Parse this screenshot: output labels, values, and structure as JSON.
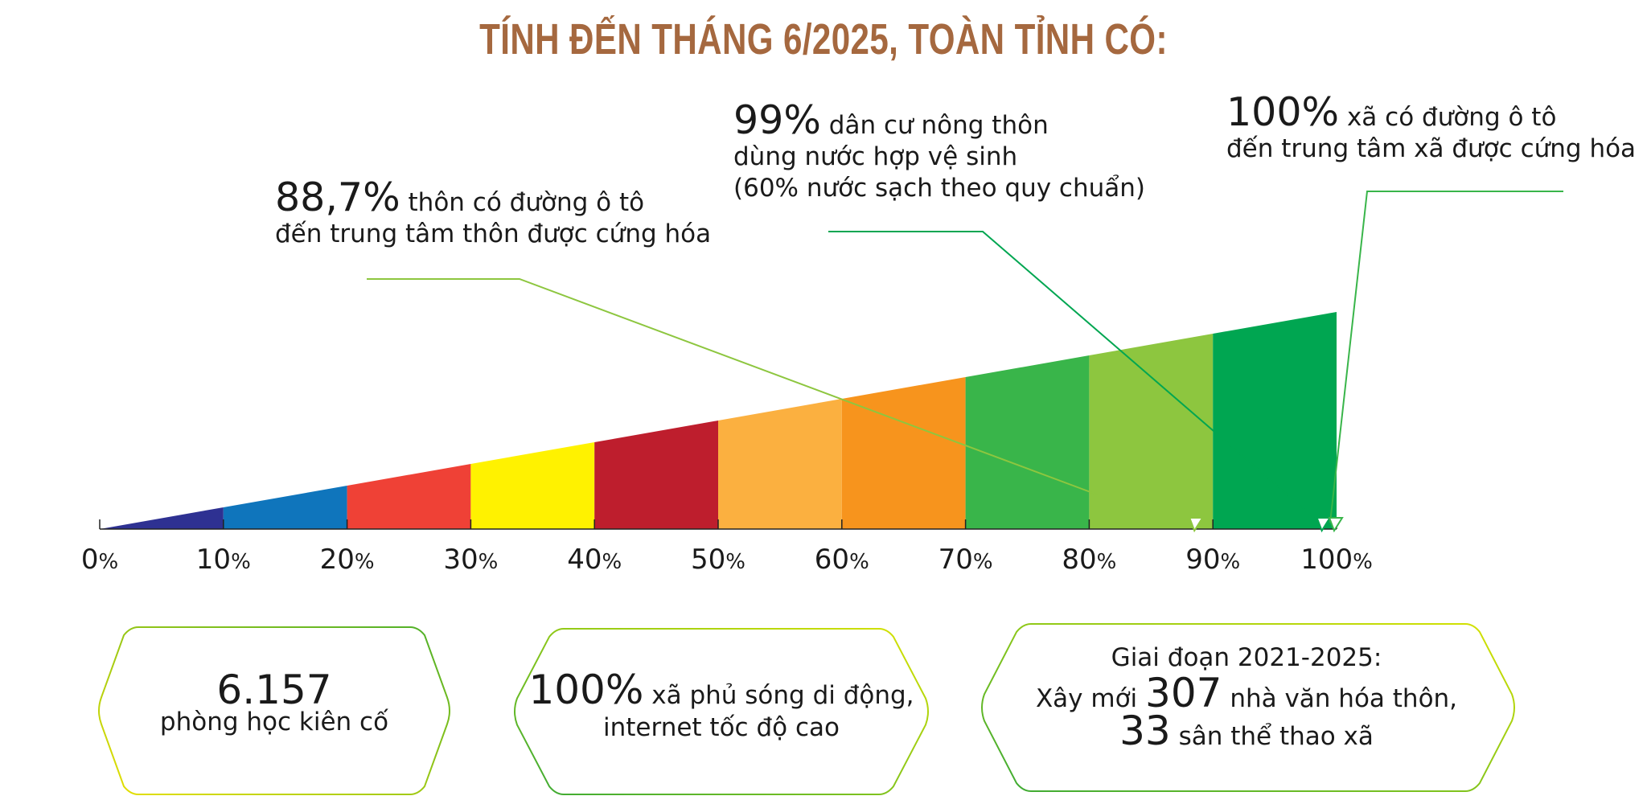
{
  "chart_data": {
    "type": "bar",
    "title": "TÍNH ĐẾN THÁNG 6/2025, TOÀN TỈNH CÓ:",
    "x_ticks": [
      {
        "num": "0",
        "unit": "%"
      },
      {
        "num": "10",
        "unit": "%"
      },
      {
        "num": "20",
        "unit": "%"
      },
      {
        "num": "30",
        "unit": "%"
      },
      {
        "num": "40",
        "unit": "%"
      },
      {
        "num": "50",
        "unit": "%"
      },
      {
        "num": "60",
        "unit": "%"
      },
      {
        "num": "70",
        "unit": "%"
      },
      {
        "num": "80",
        "unit": "%"
      },
      {
        "num": "90",
        "unit": "%"
      },
      {
        "num": "100",
        "unit": "%"
      }
    ],
    "xlim": [
      0,
      100
    ],
    "segment_colors": [
      "#2e3192",
      "#0f75bc",
      "#ef4136",
      "#fff200",
      "#be1e2d",
      "#fbb040",
      "#f7941d",
      "#39b54a",
      "#8dc63f",
      "#00a651"
    ],
    "annotations": [
      {
        "value": 88.7,
        "value_text": "88,7%",
        "line1": "thôn có đường ô tô",
        "line2": "đến trung tâm thôn được cứng hóa",
        "line3": "",
        "color": "#8dc63f"
      },
      {
        "value": 99,
        "value_text": "99%",
        "line1": "dân cư nông thôn",
        "line2": "dùng nước hợp vệ sinh",
        "line3": "(60% nước sạch theo quy chuẩn)",
        "color": "#00a651"
      },
      {
        "value": 100,
        "value_text": "100%",
        "line1": "xã có đường ô tô",
        "line2": "đến trung tâm xã được cứng hóa",
        "line3": "",
        "color": "#39b54a"
      }
    ]
  },
  "boxes": [
    {
      "big": "6.157",
      "line1": "phòng học kiên cố",
      "line2": ""
    },
    {
      "big": "100%",
      "line1": "xã phủ sóng di động,",
      "line2": "internet tốc độ cao"
    },
    {
      "heading": "Giai đoạn 2021-2025:",
      "pre": "Xây mới",
      "big1": "307",
      "post1": "nhà văn hóa thôn,",
      "big2": "33",
      "post2": "sân thể thao xã"
    }
  ]
}
